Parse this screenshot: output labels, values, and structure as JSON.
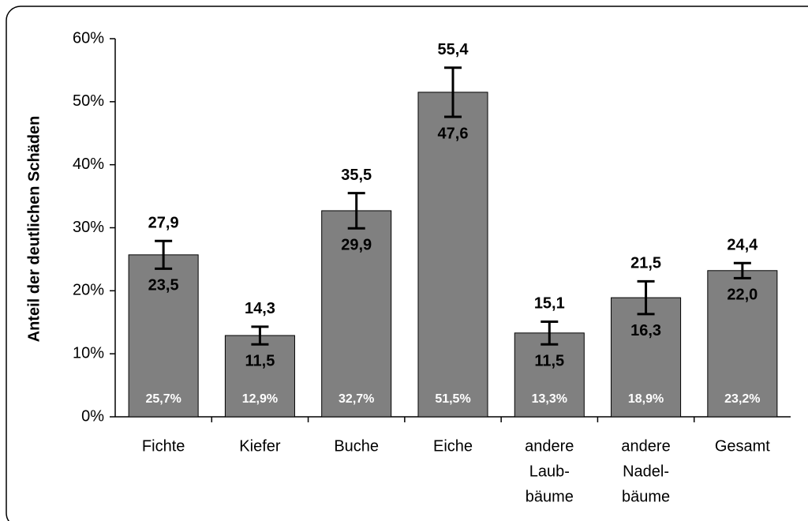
{
  "chart_data": {
    "type": "bar",
    "y_label": "Anteil der deutlichen Schäden",
    "categories": [
      [
        "Fichte"
      ],
      [
        "Kiefer"
      ],
      [
        "Buche"
      ],
      [
        "Eiche"
      ],
      [
        "andere",
        "Laub-",
        "bäume"
      ],
      [
        "andere",
        "Nadel-",
        "bäume"
      ],
      [
        "Gesamt"
      ]
    ],
    "values": [
      25.7,
      12.9,
      32.7,
      51.5,
      13.3,
      18.9,
      23.2
    ],
    "value_labels": [
      "25,7%",
      "12,9%",
      "32,7%",
      "51,5%",
      "13,3%",
      "18,9%",
      "23,2%"
    ],
    "upper": [
      27.9,
      14.3,
      35.5,
      55.4,
      15.1,
      21.5,
      24.4
    ],
    "upper_labels": [
      "27,9",
      "14,3",
      "35,5",
      "55,4",
      "15,1",
      "21,5",
      "24,4"
    ],
    "lower": [
      23.5,
      11.5,
      29.9,
      47.6,
      11.5,
      16.3,
      22.0
    ],
    "lower_labels": [
      "23,5",
      "11,5",
      "29,9",
      "47,6",
      "11,5",
      "16,3",
      "22,0"
    ],
    "color": "#808080",
    "ylim": [
      0,
      60
    ],
    "yticks": [
      {
        "value": 0,
        "label": "0%"
      },
      {
        "value": 10,
        "label": "10%"
      },
      {
        "value": 20,
        "label": "20%"
      },
      {
        "value": 30,
        "label": "30%"
      },
      {
        "value": 40,
        "label": "40%"
      },
      {
        "value": 50,
        "label": "50%"
      },
      {
        "value": 60,
        "label": "60%"
      }
    ],
    "grid": false
  }
}
